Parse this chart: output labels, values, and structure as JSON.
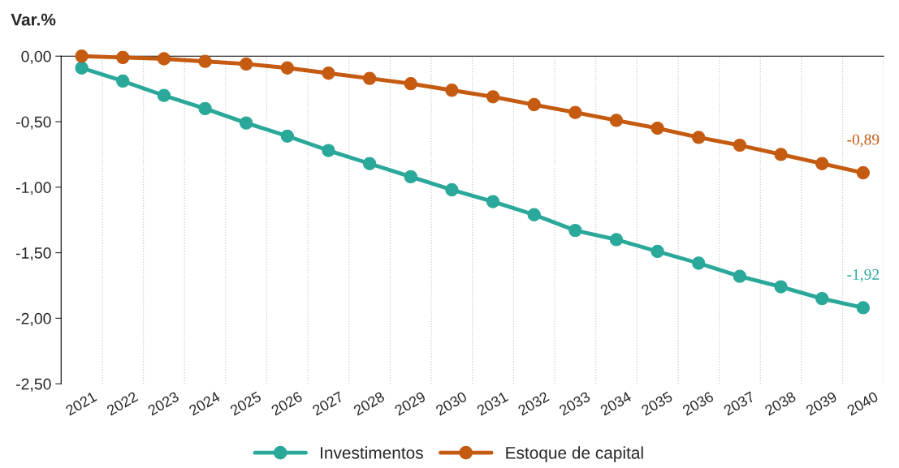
{
  "chart_data": {
    "type": "line",
    "ylabel": "Var.%",
    "categories": [
      "2021",
      "2022",
      "2023",
      "2024",
      "2025",
      "2026",
      "2027",
      "2028",
      "2029",
      "2030",
      "2031",
      "2032",
      "2033",
      "2034",
      "2035",
      "2036",
      "2037",
      "2038",
      "2039",
      "2040"
    ],
    "series": [
      {
        "name": "Investimentos",
        "color": "#2aa89a",
        "values": [
          -0.09,
          -0.19,
          -0.3,
          -0.4,
          -0.51,
          -0.61,
          -0.72,
          -0.82,
          -0.92,
          -1.02,
          -1.11,
          -1.21,
          -1.33,
          -1.4,
          -1.49,
          -1.58,
          -1.68,
          -1.76,
          -1.85,
          -1.92
        ],
        "value_labels": [
          null,
          null,
          null,
          null,
          null,
          null,
          null,
          null,
          null,
          null,
          null,
          null,
          null,
          null,
          null,
          null,
          null,
          null,
          null,
          "-1,92"
        ]
      },
      {
        "name": "Estoque de capital",
        "color": "#c55a11",
        "values": [
          0,
          -0.01,
          -0.02,
          -0.04,
          -0.06,
          -0.09,
          -0.13,
          -0.17,
          -0.21,
          -0.26,
          -0.31,
          -0.37,
          -0.43,
          -0.49,
          -0.55,
          -0.62,
          -0.68,
          -0.75,
          -0.82,
          -0.89
        ],
        "value_labels": [
          null,
          null,
          null,
          null,
          null,
          null,
          null,
          null,
          null,
          null,
          null,
          null,
          null,
          null,
          null,
          null,
          null,
          null,
          null,
          "-0,89"
        ]
      }
    ],
    "ylim": [
      -2.5,
      0
    ],
    "yticks": [
      {
        "value": 0,
        "label": "0,00"
      },
      {
        "value": -0.5,
        "label": "-0,50"
      },
      {
        "value": -1,
        "label": "-1,00"
      },
      {
        "value": -1.5,
        "label": "-1,50"
      },
      {
        "value": -2,
        "label": "-2,00"
      },
      {
        "value": -2.5,
        "label": "-2,50"
      }
    ],
    "grid": "x",
    "legend": "bottom",
    "marker": "circle",
    "line_style": "solid"
  }
}
